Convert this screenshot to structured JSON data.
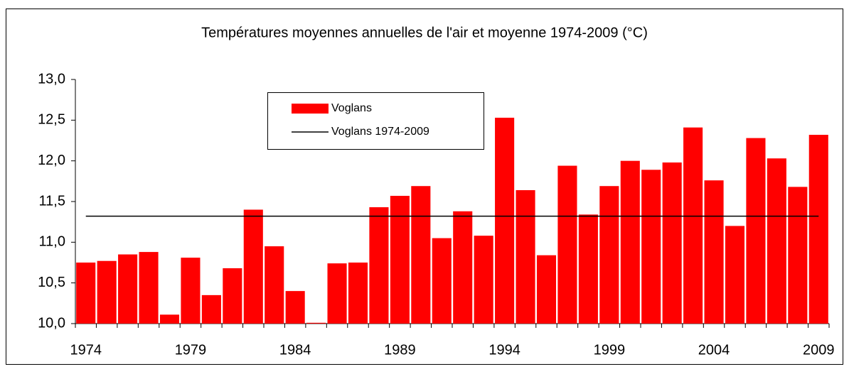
{
  "chart_data": {
    "type": "bar",
    "title": "Températures moyennes annuelles de l'air et moyenne 1974-2009 (°C)",
    "categories": [
      "1974",
      null,
      null,
      null,
      null,
      "1979",
      null,
      null,
      null,
      null,
      "1984",
      null,
      null,
      null,
      null,
      "1989",
      null,
      null,
      null,
      null,
      "1994",
      null,
      null,
      null,
      null,
      "1999",
      null,
      null,
      null,
      null,
      "2004",
      null,
      null,
      null,
      null,
      "2009"
    ],
    "series": [
      {
        "name": "Voglans",
        "color": "#ff0000",
        "values": [
          10.75,
          10.77,
          10.85,
          10.88,
          10.11,
          10.81,
          10.35,
          10.68,
          11.4,
          10.95,
          10.4,
          10.01,
          10.74,
          10.75,
          11.43,
          11.57,
          11.69,
          11.05,
          11.38,
          11.08,
          12.53,
          11.64,
          10.84,
          11.94,
          11.34,
          11.69,
          12.0,
          11.89,
          11.98,
          12.41,
          11.76,
          11.2,
          12.28,
          12.03,
          11.68,
          12.32
        ]
      }
    ],
    "reference_line": {
      "name": "Voglans 1974-2009",
      "value": 11.32,
      "color": "#000000"
    },
    "ylim": [
      10,
      13
    ],
    "yticks": [
      {
        "value": 10,
        "label": "10,0"
      },
      {
        "value": 10.5,
        "label": "10,5"
      },
      {
        "value": 11,
        "label": "11,0"
      },
      {
        "value": 11.5,
        "label": "11,5"
      },
      {
        "value": 12,
        "label": "12,0"
      },
      {
        "value": 12.5,
        "label": "12,5"
      },
      {
        "value": 13,
        "label": "13,0"
      }
    ],
    "grid": false,
    "legend": "top"
  }
}
